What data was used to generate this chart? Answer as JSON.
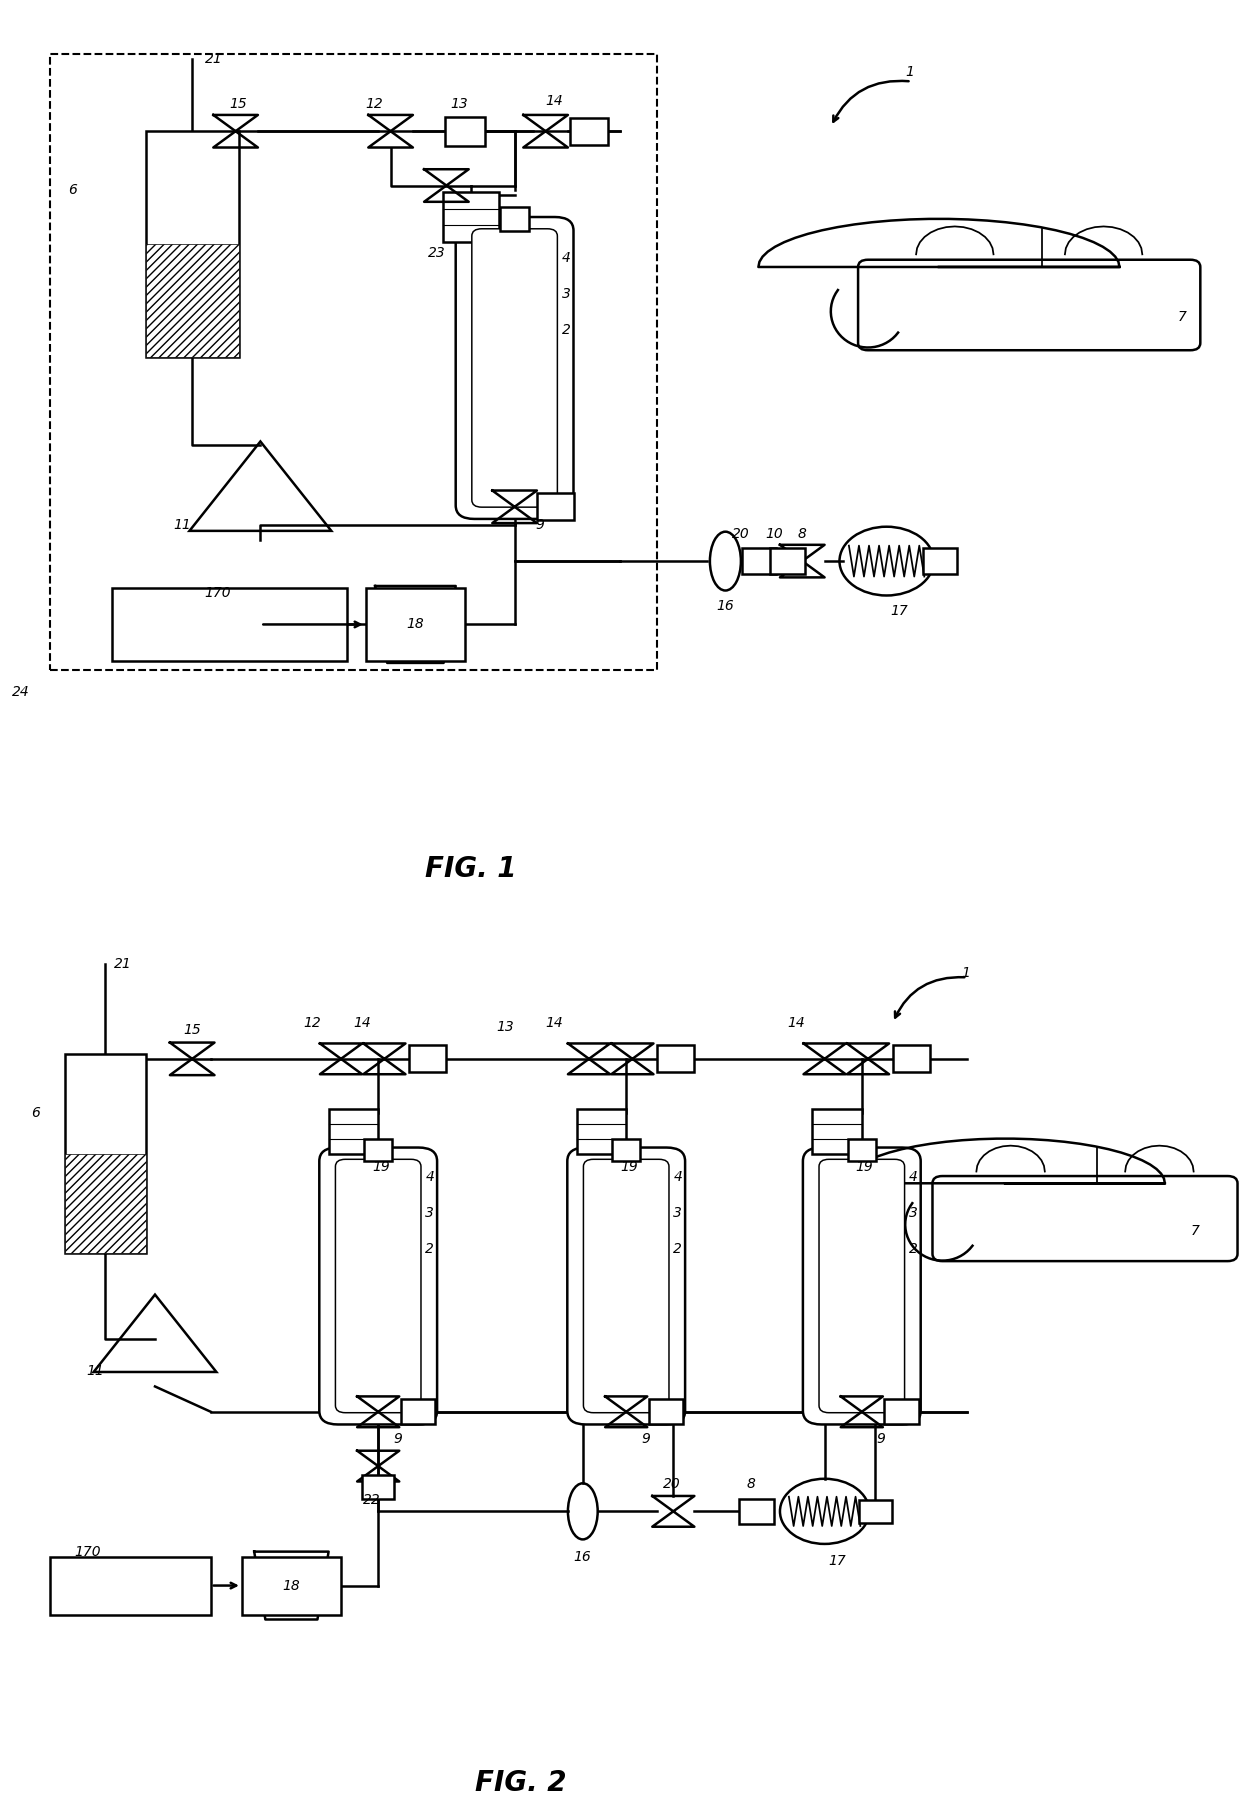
{
  "background_color": "#ffffff",
  "fig_width": 12.4,
  "fig_height": 18.1,
  "line_color": "#000000",
  "line_width": 1.8,
  "label_fontsize": 10,
  "title_fontsize": 20
}
